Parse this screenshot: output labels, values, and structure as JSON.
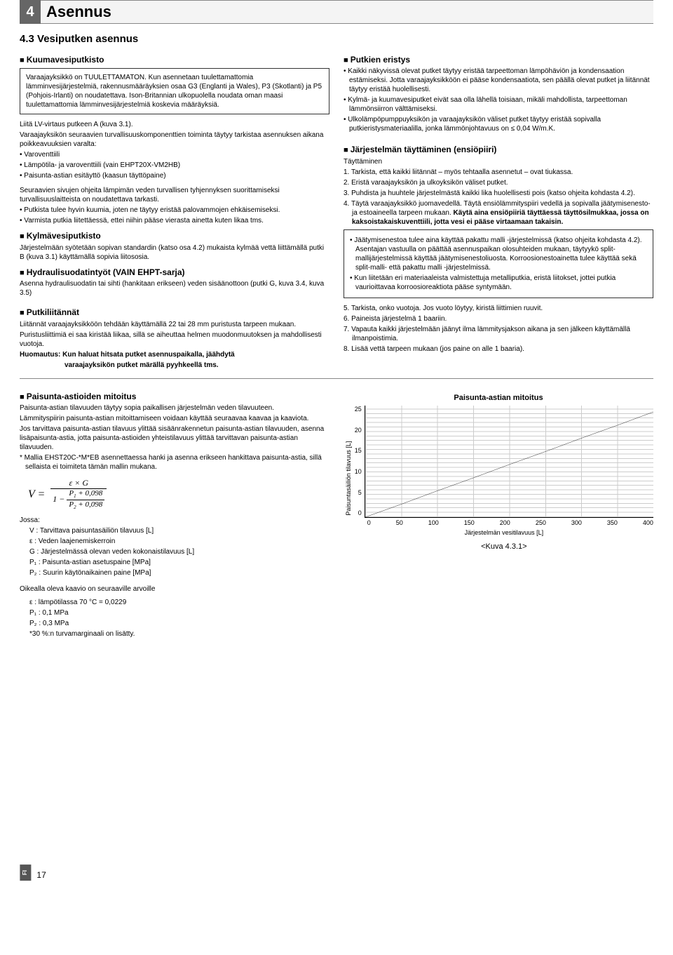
{
  "header": {
    "num": "4",
    "title": "Asennus"
  },
  "section_title": "4.3 Vesiputken asennus",
  "left": {
    "kuumavesi": {
      "heading": "Kuumavesiputkisto",
      "box": "Varaajayksikkö on TUULETTAMATON. Kun asennetaan tuulettamattomia lämminvesijärjestelmiä, rakennusmääräyksien osaa G3 (Englanti ja Wales), P3 (Skotlanti) ja P5 (Pohjois-Irlanti) on noudatettava. Ison-Britannian ulkopuolella noudata oman maasi tuulettamattomia lämminvesijärjestelmiä koskevia määräyksiä.",
      "p1": "Liitä LV-virtaus putkeen A (kuva 3.1).",
      "p2": "Varaajayksikön seuraavien turvallisuuskomponenttien toiminta täytyy tarkistaa asennuksen aikana poikkeavuuksien varalta:",
      "b1": "• Varoventtiili",
      "b2": "• Lämpötila- ja varoventtiili (vain EHPT20X-VM2HB)",
      "b3": "• Paisunta-astian esitäyttö (kaasun täyttöpaine)",
      "p3": "Seuraavien sivujen ohjeita lämpimän veden turvallisen tyhjennyksen suorittamiseksi turvallisuuslaitteista on noudatettava tarkasti.",
      "b4": "• Putkista tulee hyvin kuumia, joten ne täytyy eristää palovammojen ehkäisemiseksi.",
      "b5": "• Varmista putkia liitettäessä, ettei niihin pääse vierasta ainetta kuten likaa tms."
    },
    "kylma": {
      "heading": "Kylmävesiputkisto",
      "p1": "Järjestelmään syötetään sopivan standardin (katso osa 4.2) mukaista kylmää vettä liittämällä putki B (kuva 3.1) käyttämällä sopivia liitososia."
    },
    "hydrauli": {
      "heading": "Hydraulisuodatintyöt (VAIN EHPT-sarja)",
      "p1": "Asenna hydraulisuodatin tai sihti (hankitaan erikseen) veden sisäänottoon (putki G, kuva 3.4, kuva 3.5)"
    },
    "putki": {
      "heading": "Putkiliitännät",
      "p1": "Liitännät varaajayksikköön tehdään käyttämällä 22 tai 28 mm puristusta tarpeen mukaan.",
      "p2": "Puristusliittimiä ei saa kiristää liikaa, sillä se aiheuttaa helmen muodonmuutoksen ja mahdollisesti vuotoja.",
      "p3a": "Huomautus: Kun haluat hitsata putket asennuspaikalla, jäähdytä",
      "p3b": "varaajayksikön putket märällä pyyhkeellä tms."
    }
  },
  "right": {
    "eristys": {
      "heading": "Putkien eristys",
      "b1": "• Kaikki näkyvissä olevat putket täytyy eristää tarpeettoman lämpöhäviön ja kondensaation estämiseksi. Jotta varaajayksikköön ei pääse kondensaatiota, sen päällä olevat putket ja liitännät täytyy eristää huolellisesti.",
      "b2": "• Kylmä- ja kuumavesiputket eivät saa olla lähellä toisiaan, mikäli mahdollista, tarpeettoman lämmönsiirron välttämiseksi.",
      "b3": "• Ulkolämpöpumppuyksikön ja varaajayksikön väliset putket täytyy eristää sopivalla putkieristysmateriaalilla, jonka lämmönjohtavuus on ≤ 0,04 W/m.K."
    },
    "taytto": {
      "heading": "Järjestelmän täyttäminen (ensiöpiiri)",
      "sub": "Täyttäminen",
      "n1": "1. Tarkista, että kaikki liitännät – myös tehtaalla asennetut – ovat tiukassa.",
      "n2": "2. Eristä varaajayksikön ja ulkoyksikön väliset putket.",
      "n3": "3. Puhdista ja huuhtele järjestelmästä kaikki lika huolellisesti pois (katso ohjeita kohdasta 4.2).",
      "n4a": "4. Täytä varaajayksikkö juomavedellä. Täytä ensiölämmityspiiri vedellä ja sopivalla jäätymisenesto- ja estoaineella tarpeen mukaan. ",
      "n4b": "Käytä aina ensiöpiiriä täyttäessä täyttösilmukkaa, jossa on kaksoistakaiskuventtiili, jotta vesi ei pääse virtaamaan takaisin.",
      "box_b1": "• Jäätymisenestoa tulee aina käyttää pakattu malli -järjestelmissä (katso ohjeita kohdasta 4.2). Asentajan vastuulla on päättää asennuspaikan olosuhteiden mukaan, täytyykö split-mallijärjestelmissä käyttää jäätymisenestoliuosta. Korroosionestoainetta tulee käyttää sekä split-malli- että pakattu malli -järjestelmissä.",
      "box_b2": "• Kun liitetään eri materiaaleista valmistettuja metalliputkia, eristä liitokset, jottei putkia vaurioittavaa korroosioreaktiota pääse syntymään.",
      "n5": "5. Tarkista, onko vuotoja. Jos vuoto löytyy, kiristä liittimien ruuvit.",
      "n6": "6. Paineista järjestelmä 1 baariin.",
      "n7": "7. Vapauta kaikki järjestelmään jäänyt ilma lämmitysjakson aikana ja sen jälkeen käyttämällä ilmanpoistimia.",
      "n8": "8. Lisää vettä tarpeen mukaan (jos paine on alle 1 baaria)."
    }
  },
  "bottom": {
    "paisunta": {
      "heading": "Paisunta-astioiden mitoitus",
      "p1": "Paisunta-astian tilavuuden täytyy sopia paikallisen järjestelmän veden tilavuuteen.",
      "p2": "Lämmityspiirin paisunta-astian mitoittamiseen voidaan käyttää seuraavaa kaavaa ja kaaviota.",
      "p3": "Jos tarvittava paisunta-astian tilavuus ylittää sisäänrakennetun paisunta-astian tilavuuden, asenna lisäpaisunta-astia, jotta paisunta-astioiden yhteistilavuus ylittää tarvittavan paisunta-astian tilavuuden.",
      "p4": "* Mallia EHST20C-*M*EB asennettaessa hanki ja asenna erikseen hankittava paisunta-astia, sillä sellaista ei toimiteta tämän mallin mukana.",
      "jossa": "Jossa:",
      "d1": "V   : Tarvittava paisuntasäiliön tilavuus [L]",
      "d2": "ε    : Veden laajenemiskerroin",
      "d3": "G   : Järjestelmässä olevan veden kokonaistilavuus [L]",
      "d4": "P₁  : Paisunta-astian asetuspaine [MPa]",
      "d5": "P₂  : Suurin käytönaikainen paine [MPa]",
      "p5": "Oikealla oleva kaavio on seuraaville arvoille",
      "v1": "ε    : lämpötilassa 70 °C = 0,0229",
      "v2": "P₁  : 0,1 MPa",
      "v3": "P₂  : 0,3 MPa",
      "v4": "*30 %:n turvamarginaali on lisätty."
    },
    "chart": {
      "title": "Paisunta-astian mitoitus",
      "ylabel": "Paisuntasäiliön tilavuus [L]",
      "xlabel": "Järjestelmän vesitilavuus [L]",
      "figref": "<Kuva 4.3.1>",
      "yticks": [
        "0",
        "5",
        "10",
        "15",
        "20",
        "25"
      ],
      "xticks": [
        "0",
        "50",
        "100",
        "150",
        "200",
        "250",
        "300",
        "350",
        "400"
      ],
      "line_color": "#000",
      "bg": "#fff",
      "grid": "#ccc",
      "points": [
        [
          0,
          0
        ],
        [
          50,
          2.9
        ],
        [
          100,
          5.9
        ],
        [
          150,
          8.8
        ],
        [
          200,
          11.8
        ],
        [
          250,
          14.7
        ],
        [
          300,
          17.7
        ],
        [
          350,
          20.6
        ],
        [
          400,
          23.6
        ]
      ]
    }
  },
  "footer": {
    "lang": "FI",
    "page": "17"
  }
}
